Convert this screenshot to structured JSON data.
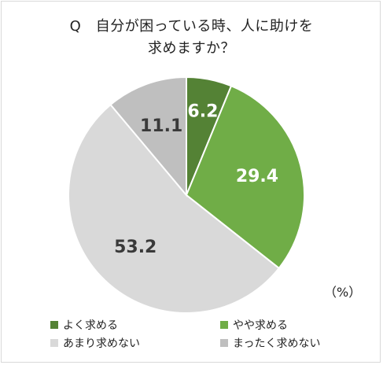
{
  "title_lines": [
    "Q　自分が困っている時、人に助けを",
    "求めますか？"
  ],
  "unit": "（%）",
  "colors": {
    "yoku": "#548235",
    "yaya": "#70ad47",
    "amari": "#d9d9d9",
    "mattaku": "#bfbfbf",
    "label_light": "#ffffff",
    "label_dark": "#3a3a3a"
  },
  "chart_data": {
    "type": "pie",
    "title": "Q　自分が困っている時、人に助けを求めますか？",
    "unit": "（%）",
    "legend_placement": "bottom",
    "slices": [
      {
        "label": "よく求める",
        "value": 6.2,
        "value_label": "6.2"
      },
      {
        "label": "やや求める",
        "value": 29.4,
        "value_label": "29.4"
      },
      {
        "label": "あまり求めない",
        "value": 53.2,
        "value_label": "53.2"
      },
      {
        "label": "まったく求めない",
        "value": 11.1,
        "value_label": "11.1"
      }
    ]
  }
}
